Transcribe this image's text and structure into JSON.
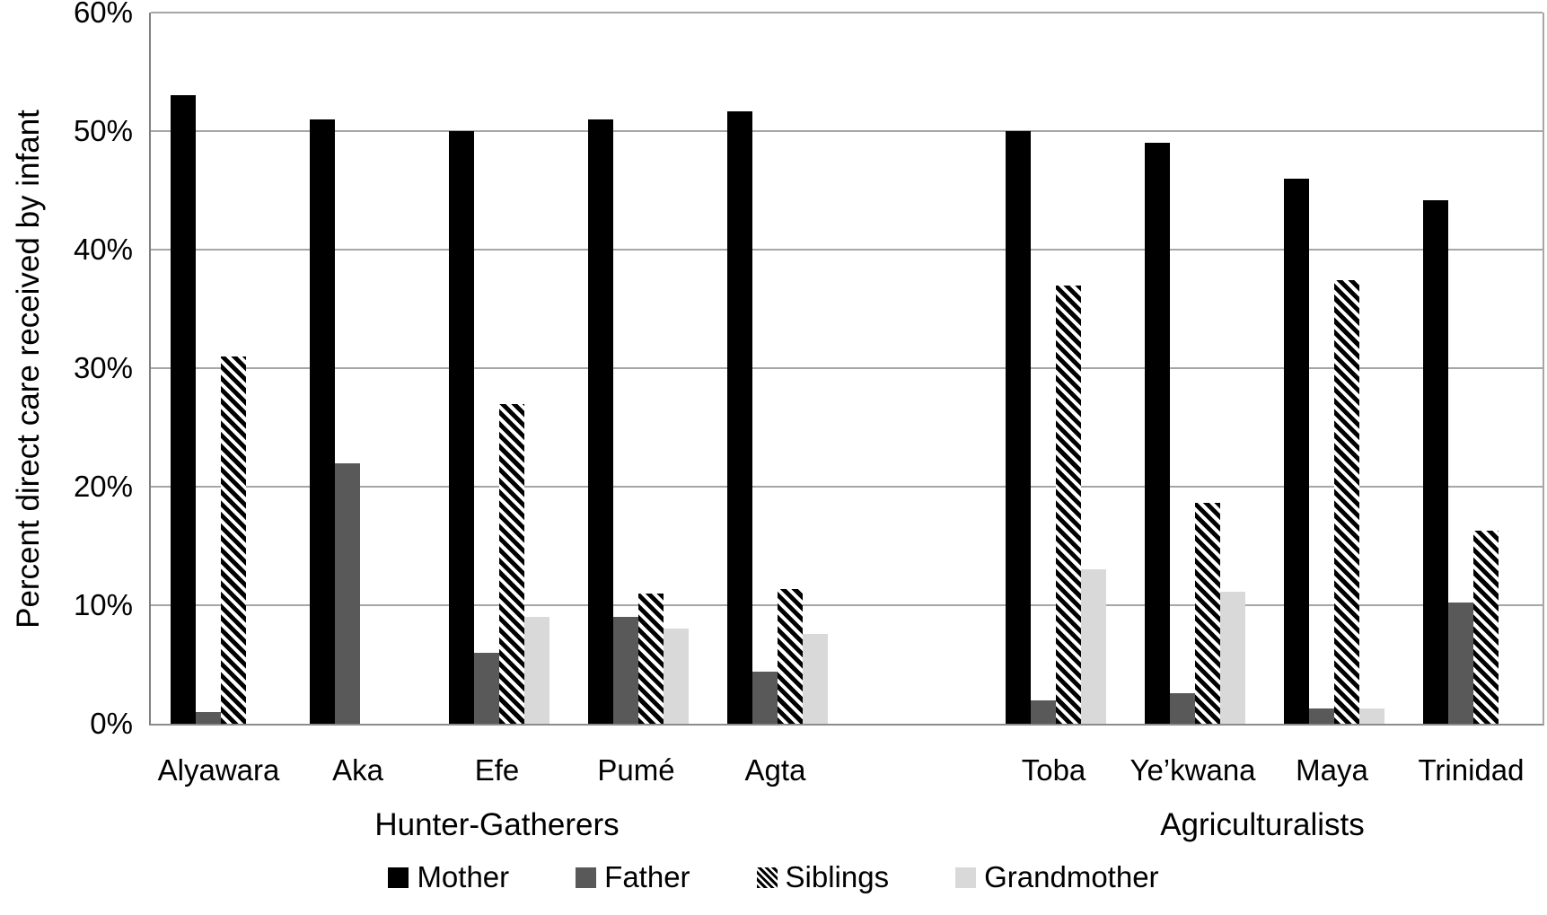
{
  "chart_data": {
    "type": "bar",
    "title": "",
    "ylabel": "Percent direct care received by infant",
    "xlabel": "",
    "ylim": [
      0,
      60
    ],
    "yticks": [
      0,
      10,
      20,
      30,
      40,
      50,
      60
    ],
    "ytick_labels": [
      "0%",
      "10%",
      "20%",
      "30%",
      "40%",
      "50%",
      "60%"
    ],
    "grid": true,
    "legend_position": "bottom",
    "categories": [
      "Alyawara",
      "Aka",
      "Efe",
      "Pumé",
      "Agta",
      "Toba",
      "Ye’kwana",
      "Maya",
      "Trinidad"
    ],
    "category_groups": [
      {
        "label": "Hunter-Gatherers",
        "start": 0,
        "end": 4
      },
      {
        "label": "Agriculturalists",
        "start": 5,
        "end": 8
      }
    ],
    "cluster_gap_after": "Agta",
    "series": [
      {
        "name": "Mother",
        "pattern": "solid",
        "color": "#000000",
        "values": [
          53,
          51,
          50,
          51,
          51.7,
          50,
          49,
          46,
          44.2
        ]
      },
      {
        "name": "Father",
        "pattern": "solid",
        "color": "#595959",
        "values": [
          1,
          22,
          6,
          9,
          4.4,
          2,
          2.6,
          1.3,
          10.2
        ]
      },
      {
        "name": "Siblings",
        "pattern": "diagonal-hatch",
        "color": "#000000",
        "values": [
          31,
          null,
          27,
          11,
          11.4,
          37,
          18.6,
          37.4,
          16.3
        ]
      },
      {
        "name": "Grandmother",
        "pattern": "solid",
        "color": "#d9d9d9",
        "values": [
          null,
          null,
          9,
          8,
          7.6,
          13,
          11.1,
          1.3,
          null
        ]
      }
    ],
    "colors": {
      "gridline": "#a6a6a6",
      "axis": "#808080",
      "text": "#000000"
    }
  }
}
